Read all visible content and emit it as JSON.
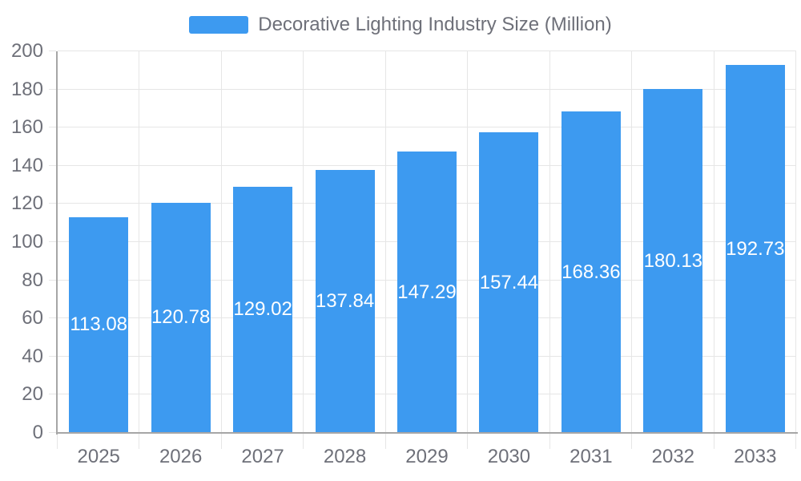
{
  "legend": {
    "label": "Decorative Lighting Industry Size (Million)"
  },
  "colors": {
    "bar": "#3d9af0",
    "grid": "#e6e6e6",
    "axis": "#a6a6a6",
    "text": "#6e7079",
    "value_label": "#ffffff"
  },
  "chart_data": {
    "type": "bar",
    "title": "Decorative Lighting Industry Size (Million)",
    "categories": [
      "2025",
      "2026",
      "2027",
      "2028",
      "2029",
      "2030",
      "2031",
      "2032",
      "2033"
    ],
    "series": [
      {
        "name": "Decorative Lighting Industry Size (Million)",
        "values": [
          113.08,
          120.78,
          129.02,
          137.84,
          147.29,
          157.44,
          168.36,
          180.13,
          192.73
        ]
      }
    ],
    "value_labels": [
      "113.08",
      "120.78",
      "129.02",
      "137.84",
      "147.29",
      "157.44",
      "168.36",
      "180.13",
      "192.73"
    ],
    "xlabel": "",
    "ylabel": "",
    "ylim": [
      0,
      200
    ],
    "y_ticks": [
      0,
      20,
      40,
      60,
      80,
      100,
      120,
      140,
      160,
      180,
      200
    ],
    "grid": true,
    "legend_position": "top",
    "value_label_position": "inside-center"
  }
}
